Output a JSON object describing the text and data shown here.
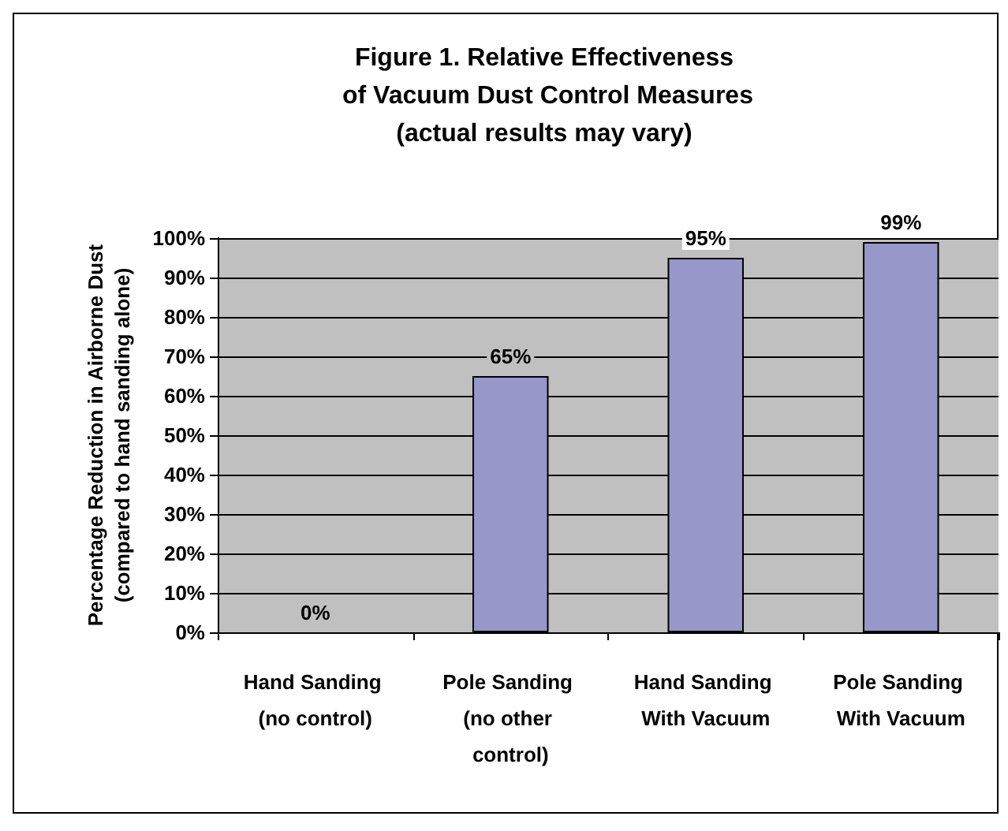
{
  "chart_data": {
    "type": "bar",
    "title": "Figure 1. Relative Effectiveness of Vacuum Dust Control Measures",
    "subtitle": "(actual results may vary)",
    "ylabel": "Percentage Reduction in Airborne Dust\n(compared to hand sanding alone)",
    "categories": [
      "Hand Sanding (no control)",
      "Pole Sanding (no other control)",
      "Hand Sanding With Vacuum",
      "Pole Sanding With Vacuum"
    ],
    "values": [
      0,
      65,
      95,
      99
    ],
    "value_labels": [
      "0%",
      "65%",
      "95%",
      "99%"
    ],
    "color": "#9797c9",
    "ylim": [
      0,
      100
    ],
    "yticks": [
      {
        "value": 0,
        "label": "0%"
      },
      {
        "value": 10,
        "label": "10%"
      },
      {
        "value": 20,
        "label": "20%"
      },
      {
        "value": 30,
        "label": "30%"
      },
      {
        "value": 40,
        "label": "40%"
      },
      {
        "value": 50,
        "label": "50%"
      },
      {
        "value": 60,
        "label": "60%"
      },
      {
        "value": 70,
        "label": "70%"
      },
      {
        "value": 80,
        "label": "80%"
      },
      {
        "value": 90,
        "label": "90%"
      },
      {
        "value": 100,
        "label": "100%"
      }
    ],
    "grid": "y"
  }
}
